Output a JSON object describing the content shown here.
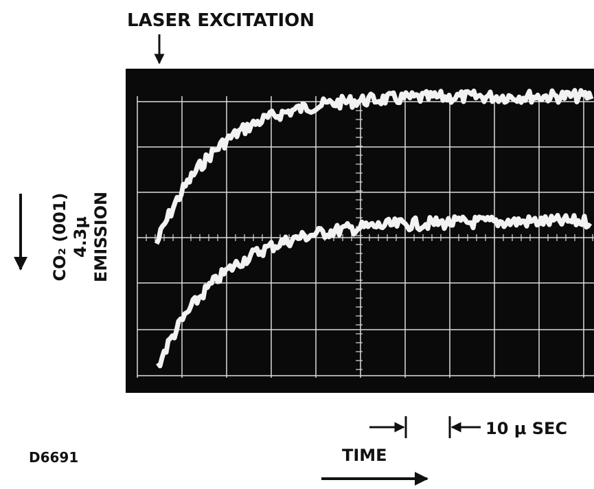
{
  "header": {
    "title": "LASER EXCITATION"
  },
  "y_label": {
    "lines": [
      "CO₂ (001)",
      "4.3μ",
      "EMISSION"
    ]
  },
  "scale_label": "10 μ SEC",
  "x_label": "TIME",
  "figure_id": "D6691"
}
